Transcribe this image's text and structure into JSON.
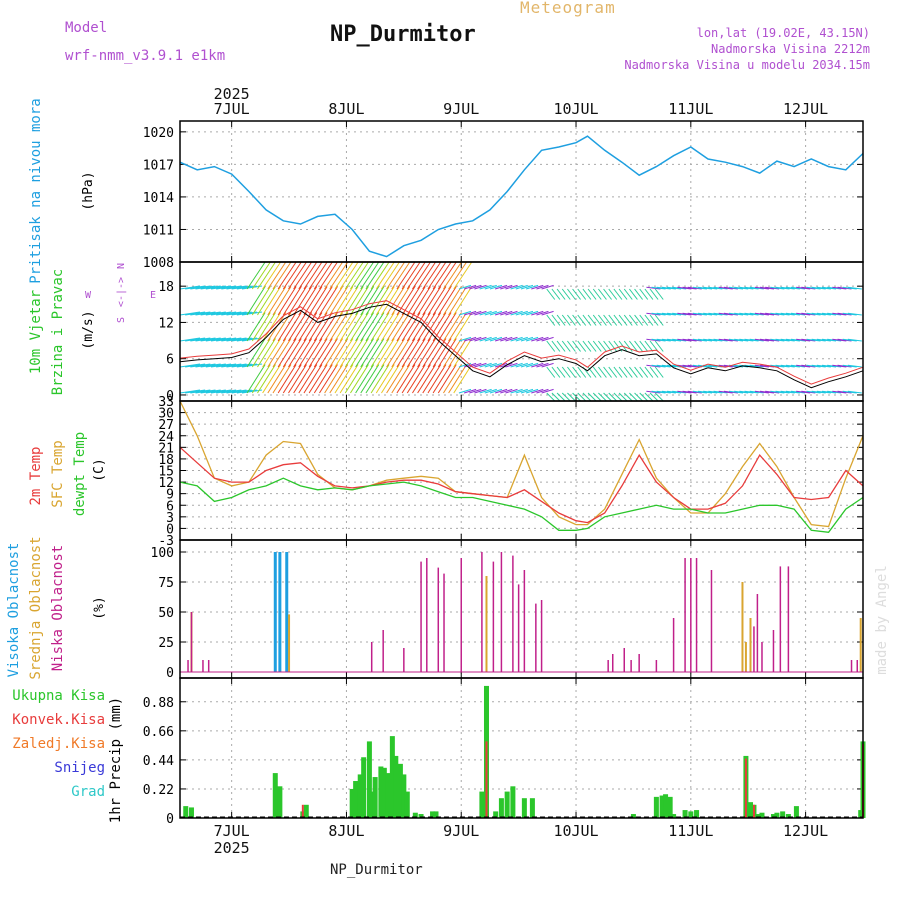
{
  "header": {
    "center_title": "Meteogram",
    "station": "NP_Durmitor",
    "model_label": "Model",
    "model_name": "wrf-nmm_v3.9.1 e1km",
    "lonlat": "lon,lat (19.02E, 43.15N)",
    "elevation": "Nadmorska Visina 2212m",
    "model_elevation": "Nadmorska Visina u modelu 2034.15m",
    "footer_station": "NP_Durmitor",
    "credit": "made by Angel"
  },
  "time_axis": {
    "year": "2025",
    "days": [
      "7JUL",
      "8JUL",
      "9JUL",
      "10JUL",
      "11JUL",
      "12JUL"
    ],
    "range_days": [
      6.55,
      12.5
    ]
  },
  "panels": {
    "pressure": {
      "ylabel_main": "Pritisak na nivou mora",
      "unit": "(hPa)",
      "ticks": [
        "1008",
        "1011",
        "1014",
        "1017",
        "1020"
      ],
      "tick_values": [
        1008,
        1011,
        1014,
        1017,
        1020
      ],
      "ylim": [
        1008,
        1021
      ]
    },
    "wind": {
      "ylabel_1": "10m Vjetar",
      "ylabel_2": "Brzina i Pravac",
      "unit": "(m/s)",
      "ticks": [
        "0",
        "6",
        "12",
        "18"
      ],
      "tick_values": [
        0,
        6,
        12,
        18
      ],
      "ylim": [
        -1,
        22
      ],
      "compass_n": "N",
      "compass_e": "E",
      "compass_w": "W",
      "compass_s": "S"
    },
    "temperature": {
      "ylabel_1": "2m Temp",
      "ylabel_2": "SFC Temp",
      "ylabel_3": "dewpt Temp",
      "unit": "(C)",
      "ticks": [
        "-3",
        "0",
        "3",
        "6",
        "9",
        "12",
        "15",
        "18",
        "21",
        "24",
        "27",
        "30",
        "33"
      ],
      "tick_values": [
        -3,
        0,
        3,
        6,
        9,
        12,
        15,
        18,
        21,
        24,
        27,
        30,
        33
      ],
      "ylim": [
        -3,
        33
      ]
    },
    "cloud": {
      "ylabel_1": "Visoka Oblacnost",
      "ylabel_2": "Srednja Oblacnost",
      "ylabel_3": "Niska Oblacnost",
      "unit": "(%)",
      "ticks": [
        "0",
        "25",
        "50",
        "75",
        "100"
      ],
      "tick_values": [
        0,
        25,
        50,
        75,
        100
      ],
      "ylim": [
        -5,
        110
      ]
    },
    "precip": {
      "ylabel": "1hr Precip (mm)",
      "ticks": [
        "0",
        "0.22",
        "0.44",
        "0.66",
        "0.88"
      ],
      "tick_values": [
        0,
        0.22,
        0.44,
        0.66,
        0.88
      ],
      "ylim": [
        0,
        1.06
      ],
      "legend": [
        "Ukupna Kisa",
        "Konvek.Kisa",
        "Zaledj.Kisa",
        "Snijeg",
        "Grad"
      ]
    }
  },
  "colors": {
    "pressure": "#1e9fe0",
    "temp2m": "#e83c3c",
    "sfc": "#d9a530",
    "dewpt": "#2bc62b",
    "high_cloud": "#1e9fe0",
    "mid_cloud": "#d9a530",
    "low_cloud": "#c0208a",
    "total_rain": "#2bc62b",
    "conv_rain": "#e83c3c",
    "frozen_rain": "#f07a28",
    "snow": "#3a3ad8",
    "hail": "#2ec8c8",
    "purple_text": "#b050d0",
    "grid": "#aaaaaa"
  },
  "chart_data": [
    {
      "type": "line",
      "series": [
        {
          "x": [
            6.55,
            6.7,
            6.85,
            7.0,
            7.15,
            7.3,
            7.45,
            7.6,
            7.75,
            7.9,
            8.05,
            8.2,
            8.35,
            8.5,
            8.65,
            8.8,
            8.95,
            9.1,
            9.25,
            9.4,
            9.55,
            9.7,
            9.85,
            10.0,
            10.1,
            10.25,
            10.4,
            10.55,
            10.7,
            10.85,
            11.0,
            11.15,
            11.3,
            11.45,
            11.6,
            11.75,
            11.9,
            12.05,
            12.2,
            12.35,
            12.5
          ],
          "y": [
            1017.2,
            1016.5,
            1016.8,
            1016.1,
            1014.5,
            1012.8,
            1011.8,
            1011.5,
            1012.2,
            1012.4,
            1011.0,
            1009.0,
            1008.5,
            1009.5,
            1010.0,
            1011.0,
            1011.5,
            1011.8,
            1012.8,
            1014.5,
            1016.5,
            1018.3,
            1018.6,
            1019.0,
            1019.6,
            1018.3,
            1017.2,
            1016.0,
            1016.8,
            1017.8,
            1018.6,
            1017.5,
            1017.2,
            1016.8,
            1016.2,
            1017.3,
            1016.8,
            1017.5,
            1016.8,
            1016.5,
            1018.0
          ]
        }
      ]
    },
    {
      "type": "line",
      "series": [
        {
          "x": [
            6.55,
            6.7,
            6.85,
            7.0,
            7.15,
            7.3,
            7.45,
            7.6,
            7.75,
            7.9,
            8.05,
            8.2,
            8.35,
            8.5,
            8.65,
            8.8,
            8.95,
            9.1,
            9.25,
            9.4,
            9.55,
            9.7,
            9.85,
            10.0,
            10.1,
            10.25,
            10.4,
            10.55,
            10.7,
            10.85,
            11.0,
            11.15,
            11.3,
            11.45,
            11.6,
            11.75,
            11.9,
            12.05,
            12.2,
            12.35,
            12.5
          ],
          "y": [
            5.5,
            5.8,
            6.0,
            6.2,
            7.0,
            9.5,
            12.5,
            14.0,
            12.0,
            13.0,
            13.5,
            14.5,
            15.0,
            13.5,
            12.0,
            9.0,
            6.5,
            4.0,
            3.0,
            5.0,
            6.5,
            5.5,
            6.0,
            5.2,
            4.0,
            6.5,
            7.5,
            6.5,
            6.8,
            4.5,
            3.5,
            4.5,
            4.0,
            4.8,
            4.5,
            4.0,
            2.5,
            1.2,
            2.2,
            3.0,
            4.0
          ]
        }
      ]
    },
    {
      "type": "line",
      "series": [
        {
          "x": [
            6.55,
            6.7,
            6.85,
            7.0,
            7.15,
            7.3,
            7.45,
            7.6,
            7.75,
            7.9,
            8.05,
            8.2,
            8.35,
            8.5,
            8.65,
            8.8,
            8.95,
            9.1,
            9.25,
            9.4,
            9.55,
            9.7,
            9.85,
            10.0,
            10.1,
            10.25,
            10.4,
            10.55,
            10.7,
            10.85,
            11.0,
            11.15,
            11.3,
            11.45,
            11.6,
            11.75,
            11.9,
            12.05,
            12.2,
            12.35,
            12.5
          ],
          "y": [
            21,
            17,
            13,
            12,
            12,
            15,
            16.5,
            17,
            13.5,
            11,
            10.5,
            11,
            12,
            12.5,
            12.5,
            11.5,
            9.5,
            9,
            8.5,
            8,
            10,
            7,
            4,
            2,
            1.5,
            4,
            11,
            19,
            12,
            8,
            5,
            5,
            6.5,
            11,
            19,
            14,
            8,
            7.5,
            8,
            15,
            11
          ]
        },
        {
          "x": [
            6.55,
            6.7,
            6.85,
            7.0,
            7.15,
            7.3,
            7.45,
            7.6,
            7.75,
            7.9,
            8.05,
            8.2,
            8.35,
            8.5,
            8.65,
            8.8,
            8.95,
            9.1,
            9.25,
            9.4,
            9.55,
            9.7,
            9.85,
            10.0,
            10.1,
            10.25,
            10.4,
            10.55,
            10.7,
            10.85,
            11.0,
            11.15,
            11.3,
            11.45,
            11.6,
            11.75,
            11.9,
            12.05,
            12.2,
            12.35,
            12.5
          ],
          "y": [
            33,
            24,
            13,
            11,
            12,
            19,
            22.5,
            22,
            14,
            10.5,
            10,
            11,
            12.5,
            13,
            13.5,
            13,
            9.5,
            9,
            8.5,
            8,
            19,
            8,
            3,
            1,
            1,
            5,
            14,
            23,
            13,
            8,
            4,
            4,
            9,
            16,
            22,
            16,
            8,
            1,
            0.5,
            13,
            24
          ]
        },
        {
          "x": [
            6.55,
            6.7,
            6.85,
            7.0,
            7.15,
            7.3,
            7.45,
            7.6,
            7.75,
            7.9,
            8.05,
            8.2,
            8.35,
            8.5,
            8.65,
            8.8,
            8.95,
            9.1,
            9.25,
            9.4,
            9.55,
            9.7,
            9.85,
            10.0,
            10.1,
            10.25,
            10.4,
            10.55,
            10.7,
            10.85,
            11.0,
            11.15,
            11.3,
            11.45,
            11.6,
            11.75,
            11.9,
            12.05,
            12.2,
            12.35,
            12.5
          ],
          "y": [
            12,
            11,
            7,
            8,
            10,
            11,
            13,
            11,
            10,
            10.5,
            10,
            11,
            11.5,
            12,
            11,
            9.5,
            8,
            8,
            7,
            6,
            5,
            3,
            -0.5,
            -0.5,
            0,
            3,
            4,
            5,
            6,
            5,
            5,
            4,
            4,
            5,
            6,
            6,
            5,
            -0.5,
            -1,
            5,
            8
          ]
        }
      ]
    },
    {
      "type": "bar",
      "series": [
        {
          "x": [
            7.38,
            7.42,
            7.48
          ],
          "values": [
            100,
            100,
            100
          ]
        },
        {
          "x": [
            6.65,
            7.5,
            9.22,
            11.45,
            11.48,
            11.52,
            12.48
          ],
          "values": [
            50,
            48,
            80,
            75,
            25,
            45,
            45
          ]
        },
        {
          "x": [
            6.62,
            6.65,
            6.75,
            6.8,
            8.22,
            8.32,
            8.5,
            8.65,
            8.7,
            8.8,
            8.85,
            9.0,
            9.18,
            9.28,
            9.35,
            9.45,
            9.5,
            9.55,
            9.65,
            9.7,
            10.28,
            10.32,
            10.42,
            10.48,
            10.55,
            10.7,
            10.85,
            10.95,
            11.0,
            11.05,
            11.18,
            11.55,
            11.58,
            11.62,
            11.72,
            11.78,
            11.85,
            12.4,
            12.45
          ],
          "values": [
            10,
            50,
            10,
            10,
            25,
            35,
            20,
            92,
            95,
            87,
            82,
            95,
            100,
            92,
            100,
            97,
            73,
            85,
            57,
            60,
            10,
            15,
            20,
            10,
            15,
            10,
            45,
            95,
            95,
            95,
            85,
            38,
            65,
            25,
            35,
            88,
            88,
            10,
            10
          ]
        }
      ]
    },
    {
      "type": "bar",
      "series": [
        {
          "x": [
            6.6,
            6.65,
            7.38,
            7.42,
            7.62,
            7.65,
            8.05,
            8.08,
            8.12,
            8.15,
            8.2,
            8.22,
            8.25,
            8.3,
            8.33,
            8.36,
            8.4,
            8.43,
            8.47,
            8.5,
            8.53,
            8.6,
            8.65,
            8.75,
            8.78,
            9.18,
            9.22,
            9.3,
            9.35,
            9.4,
            9.45,
            9.55,
            9.62,
            10.5,
            10.7,
            10.75,
            10.78,
            10.82,
            10.85,
            10.95,
            11.0,
            11.05,
            11.48,
            11.52,
            11.55,
            11.58,
            11.62,
            11.72,
            11.75,
            11.8,
            11.85,
            11.92,
            12.48,
            12.5
          ],
          "values": [
            0.09,
            0.08,
            0.34,
            0.24,
            0.05,
            0.1,
            0.22,
            0.28,
            0.33,
            0.46,
            0.58,
            0.2,
            0.31,
            0.39,
            0.38,
            0.34,
            0.62,
            0.47,
            0.41,
            0.33,
            0.2,
            0.04,
            0.03,
            0.05,
            0.05,
            0.2,
            1.0,
            0.05,
            0.15,
            0.2,
            0.24,
            0.15,
            0.15,
            0.03,
            0.16,
            0.17,
            0.18,
            0.16,
            0.03,
            0.06,
            0.05,
            0.06,
            0.47,
            0.12,
            0.1,
            0.03,
            0.04,
            0.03,
            0.04,
            0.05,
            0.03,
            0.09,
            0.06,
            0.58
          ]
        },
        {
          "x": [
            7.62,
            9.22,
            11.48,
            11.55,
            12.5
          ],
          "values": [
            0.1,
            0.58,
            0.45,
            0.1,
            0.56
          ]
        }
      ]
    }
  ]
}
